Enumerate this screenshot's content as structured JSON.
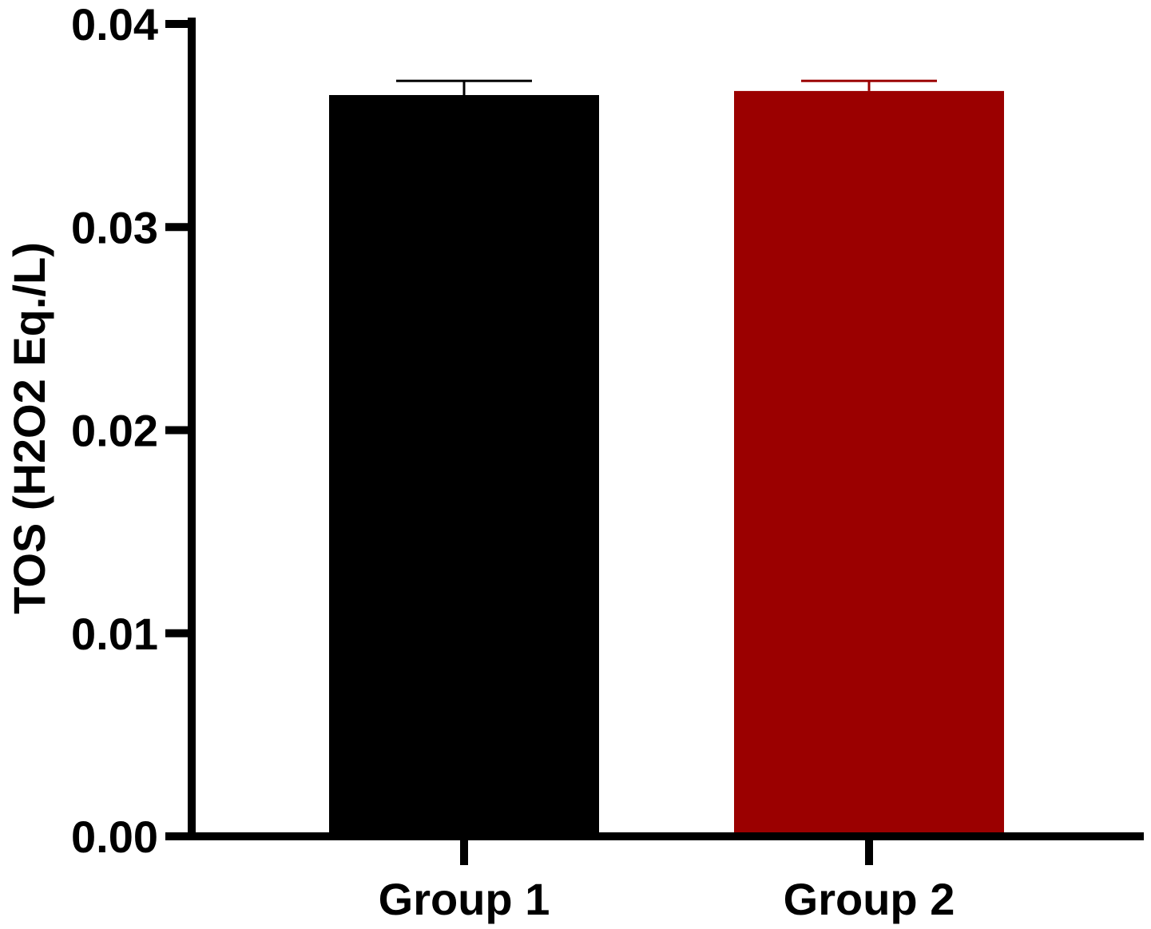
{
  "chart_data": {
    "type": "bar",
    "title": "",
    "xlabel": "",
    "ylabel": "TOS (H2O2 Eq./L)",
    "ylim": [
      0,
      0.04
    ],
    "yticks": [
      "0.00",
      "0.01",
      "0.02",
      "0.03",
      "0.04"
    ],
    "categories": [
      "Group 1",
      "Group 2"
    ],
    "values": [
      0.0365,
      0.0367
    ],
    "error_upper": [
      0.0372,
      0.0372
    ],
    "colors": [
      "#000000",
      "#9b0000"
    ],
    "grid": false,
    "legend": "none"
  }
}
